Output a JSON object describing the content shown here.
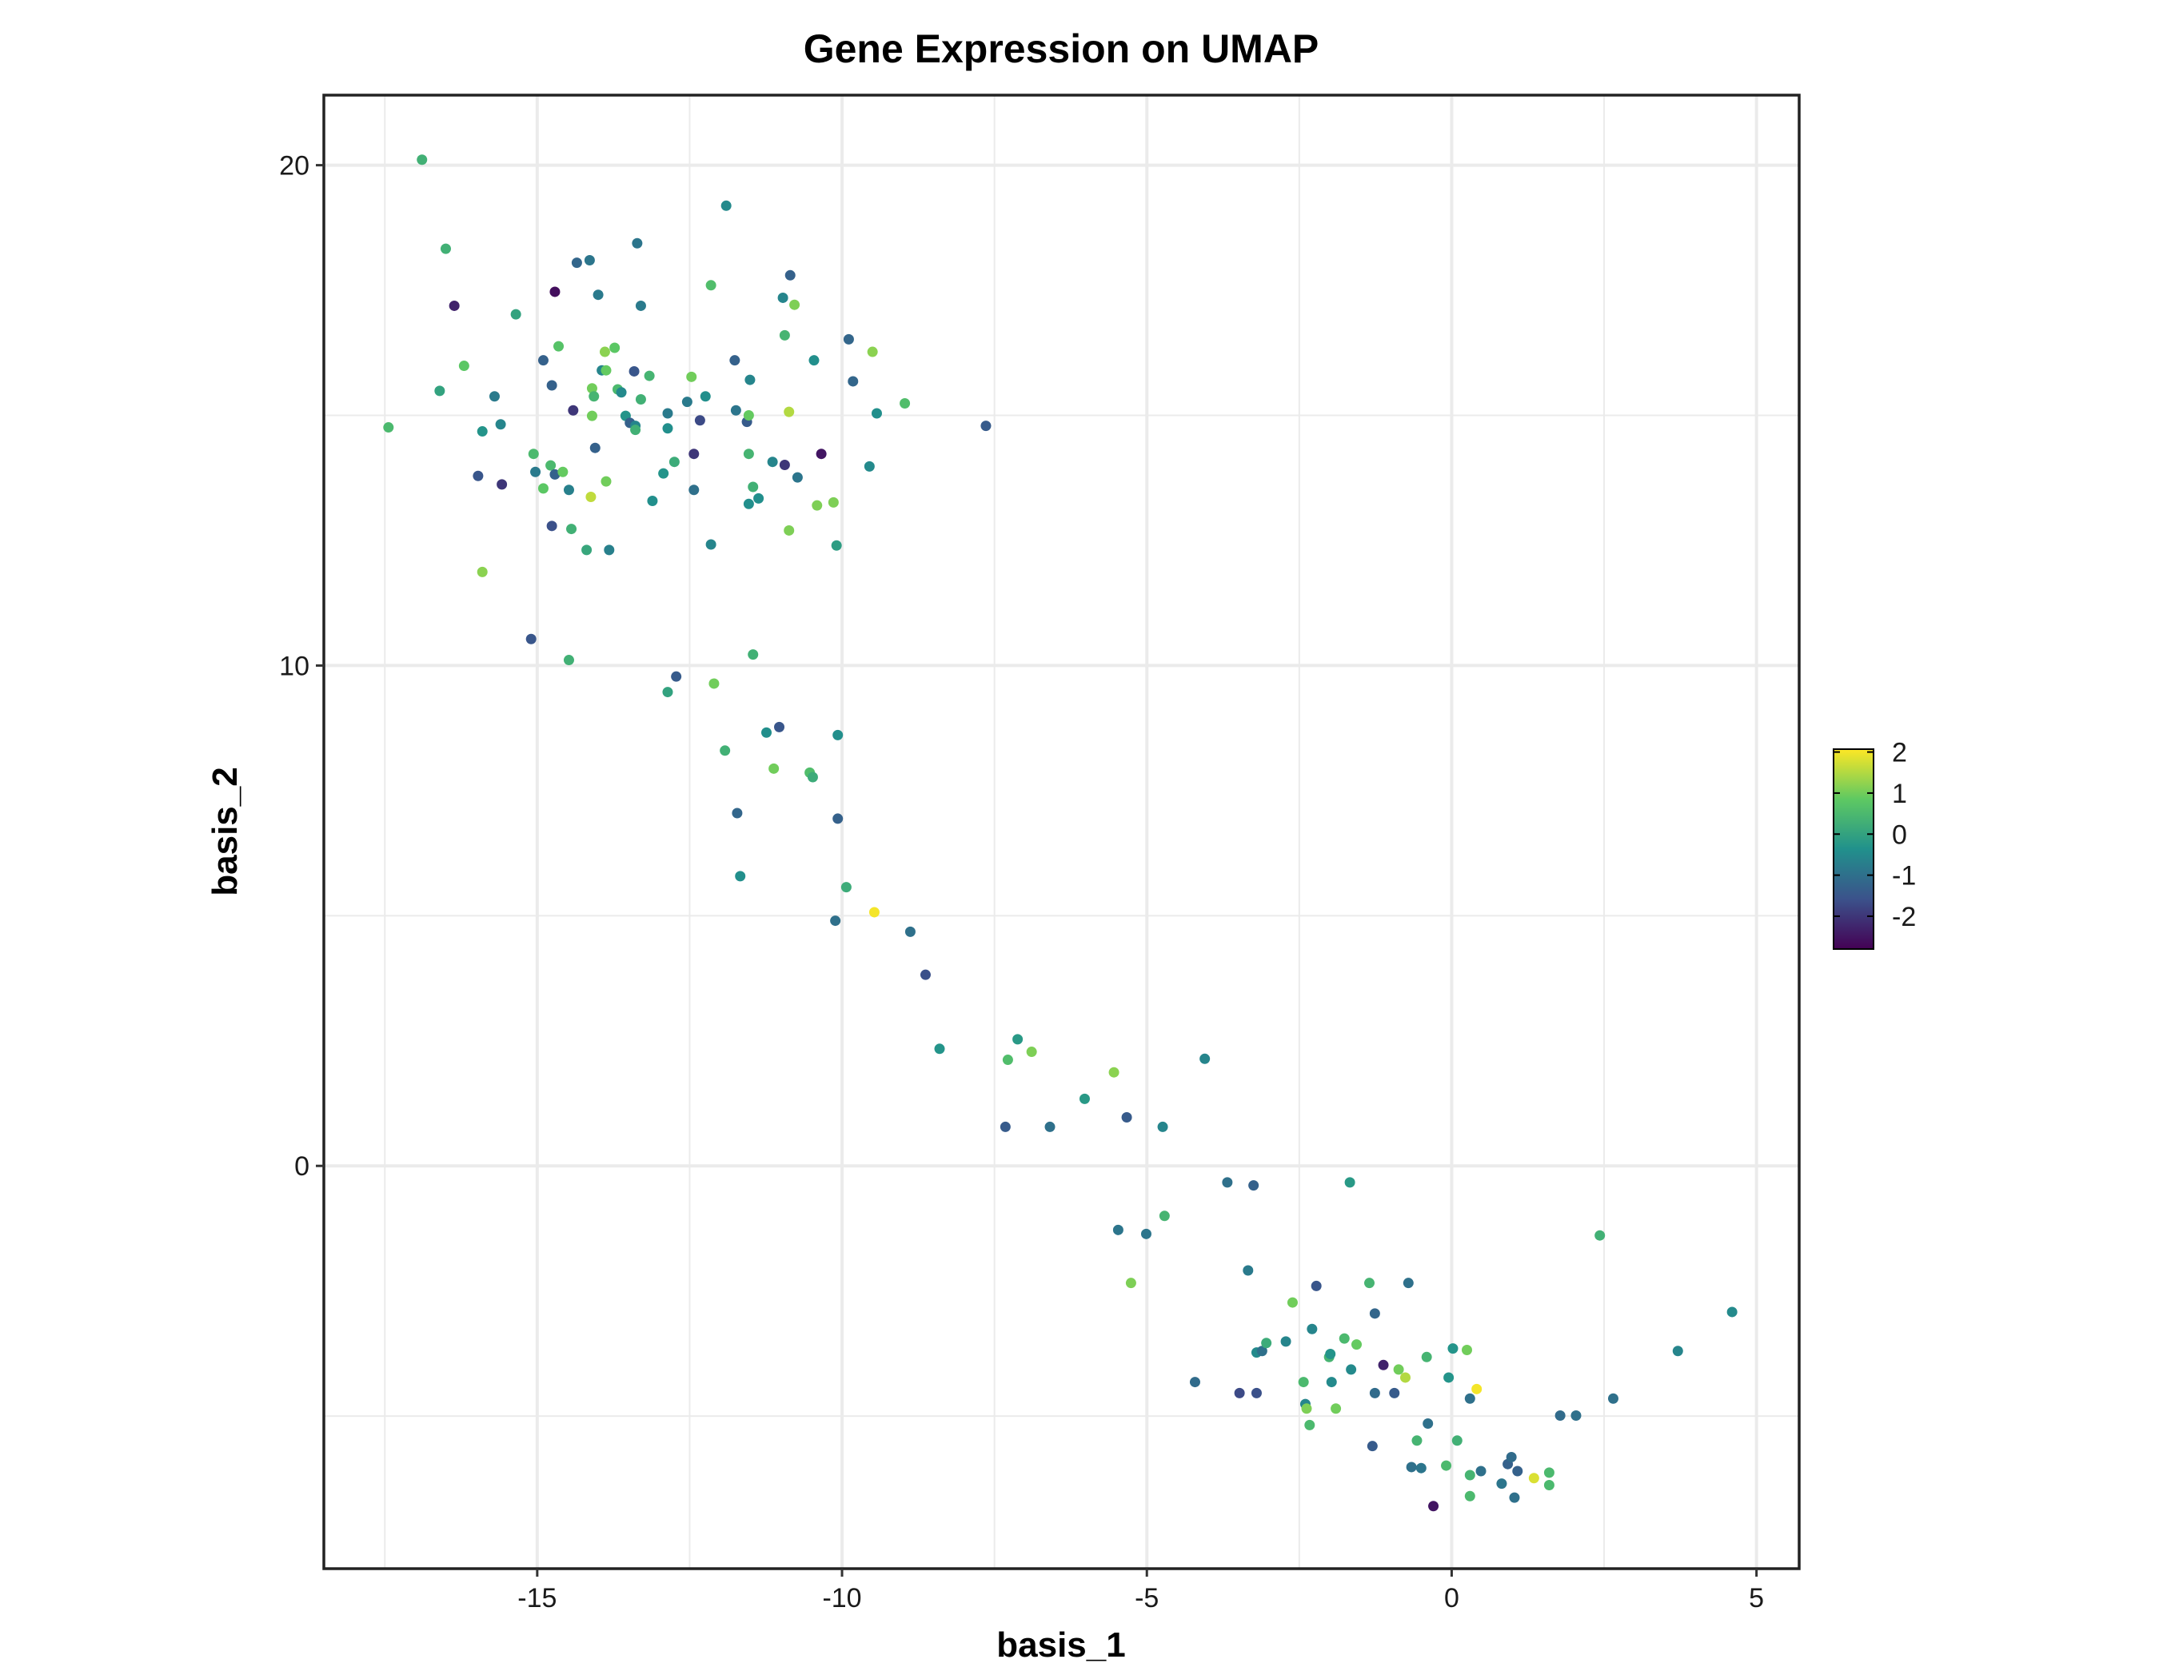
{
  "chart_data": {
    "type": "scatter",
    "title": "Gene Expression on UMAP",
    "xlabel": "basis_1",
    "ylabel": "basis_2",
    "xlim": [
      -18.5,
      5.7
    ],
    "ylim": [
      -8.05,
      21.4
    ],
    "x_ticks": [
      -15,
      -10,
      -5,
      0,
      5
    ],
    "y_ticks": [
      0,
      10,
      20
    ],
    "grid": true,
    "legend": {
      "position": "right",
      "type": "colorbar",
      "colormap": "viridis",
      "range": [
        -2.8,
        2.07
      ],
      "ticks": [
        2,
        1,
        0,
        -1,
        -2
      ]
    },
    "points": {
      "x": [
        -17.44,
        -16.89,
        -16.5,
        -16.36,
        -16.2,
        -16.6,
        -15.35,
        -15.9,
        -15.7,
        -15.6,
        -15.97,
        -15.58,
        -15.9,
        -15.06,
        -15.03,
        -14.9,
        -15.1,
        -14.9,
        -14.76,
        -14.71,
        -14.65,
        -14.78,
        -14.71,
        -14.58,
        -14.76,
        -14.48,
        -14.41,
        -14.44,
        -14.48,
        -14.35,
        -14.14,
        -14.19,
        -14.1,
        -14.07,
        -14.1,
        -14.05,
        -14.12,
        -14.0,
        -13.94,
        -13.89,
        -13.87,
        -13.73,
        -13.87,
        -13.82,
        -13.68,
        -13.62,
        -13.55,
        -13.48,
        -13.39,
        -13.41,
        -13.36,
        -13.39,
        -13.3,
        -13.3,
        -13.16,
        -13.11,
        -12.93,
        -12.86,
        -12.86,
        -12.75,
        -12.86,
        -12.72,
        -12.54,
        -12.47,
        -12.43,
        -12.43,
        -12.33,
        -12.24,
        -12.15,
        -12.15,
        -12.1,
        -11.9,
        -11.92,
        -11.76,
        -11.74,
        -11.72,
        -11.67,
        -11.56,
        -11.53,
        -11.51,
        -11.53,
        -11.46,
        -11.53,
        -11.37,
        -11.46,
        -11.24,
        -11.12,
        -11.14,
        -11.03,
        -10.97,
        -10.94,
        -10.94,
        -10.85,
        -10.87,
        -10.87,
        -10.78,
        -10.73,
        -10.53,
        -10.48,
        -10.46,
        -10.41,
        -10.34,
        -10.14,
        -10.09,
        -10.07,
        -10.07,
        -10.11,
        -9.93,
        -9.89,
        -9.82,
        -9.55,
        -9.5,
        -9.47,
        -9.43,
        -8.97,
        -8.88,
        -8.63,
        -8.4,
        -7.64,
        -7.32,
        -7.28,
        -7.12,
        -6.89,
        -6.59,
        -6.02,
        -5.54,
        -5.47,
        -5.33,
        -5.26,
        -5.01,
        -4.74,
        -4.71,
        -4.21,
        -4.05,
        -3.68,
        -3.48,
        -3.34,
        -3.25,
        -3.2,
        -3.2,
        -3.11,
        -3.04,
        -2.72,
        -2.61,
        -2.43,
        -2.4,
        -2.38,
        -2.33,
        -2.29,
        -2.22,
        -2.01,
        -1.99,
        -1.97,
        -1.9,
        -1.76,
        -1.65,
        -1.56,
        -1.67,
        -1.35,
        -1.3,
        -1.26,
        -1.26,
        -1.12,
        -0.94,
        -0.87,
        -0.76,
        -0.71,
        -0.66,
        -0.57,
        -0.5,
        -0.41,
        -0.39,
        -0.3,
        -0.09,
        -0.05,
        0.02,
        0.09,
        0.25,
        0.3,
        0.3,
        0.3,
        0.41,
        0.48,
        0.82,
        0.92,
        0.98,
        1.08,
        1.03,
        1.35,
        1.6,
        1.6,
        1.78,
        2.04,
        2.43,
        2.65,
        3.71,
        4.6
      ],
      "y": [
        14.76,
        20.11,
        18.33,
        17.19,
        15.99,
        15.49,
        17.02,
        14.68,
        15.38,
        14.82,
        13.79,
        13.62,
        11.87,
        14.23,
        13.87,
        13.54,
        10.53,
        16.1,
        15.6,
        17.47,
        16.38,
        14.0,
        13.82,
        13.87,
        12.79,
        13.51,
        15.1,
        12.73,
        10.11,
        18.05,
        18.1,
        12.31,
        15.54,
        15.38,
        14.99,
        14.35,
        13.37,
        17.41,
        15.9,
        16.27,
        15.9,
        16.35,
        13.68,
        12.31,
        15.52,
        15.46,
        14.99,
        14.85,
        14.79,
        15.88,
        18.44,
        14.71,
        15.32,
        17.19,
        15.79,
        13.29,
        13.84,
        14.74,
        15.04,
        14.07,
        9.47,
        9.78,
        15.27,
        15.77,
        13.51,
        14.23,
        14.9,
        15.38,
        17.6,
        12.42,
        9.64,
        19.19,
        8.3,
        16.1,
        15.1,
        7.05,
        5.79,
        14.87,
        15.0,
        15.71,
        14.23,
        13.57,
        13.23,
        13.34,
        10.22,
        8.66,
        7.94,
        14.07,
        8.77,
        17.35,
        16.6,
        14.01,
        17.8,
        15.07,
        12.7,
        17.21,
        13.76,
        7.86,
        7.77,
        16.1,
        13.2,
        14.23,
        13.26,
        12.4,
        8.61,
        6.94,
        4.9,
        5.57,
        16.52,
        15.68,
        13.98,
        16.27,
        5.07,
        15.04,
        15.24,
        4.68,
        3.82,
        2.34,
        14.79,
        0.78,
        2.12,
        2.53,
        2.28,
        0.78,
        1.34,
        1.87,
        -1.28,
        0.97,
        -2.34,
        -1.36,
        0.78,
        -1.0,
        -4.32,
        2.14,
        -0.33,
        -4.54,
        -2.09,
        -0.39,
        -3.73,
        -4.54,
        -3.7,
        -3.54,
        -3.51,
        -2.73,
        -4.32,
        -4.76,
        -4.85,
        -5.18,
        -3.26,
        -2.4,
        -3.82,
        -3.76,
        -4.32,
        -4.85,
        -3.45,
        -4.07,
        -3.57,
        -0.33,
        -2.34,
        -5.6,
        -2.95,
        -4.54,
        -3.98,
        -4.54,
        -4.07,
        -4.23,
        -2.34,
        -6.02,
        -5.49,
        -6.04,
        -3.82,
        -5.15,
        -6.8,
        -5.99,
        -4.23,
        -3.65,
        -5.49,
        -3.68,
        -4.65,
        -6.18,
        -6.6,
        -4.46,
        -6.1,
        -6.35,
        -5.96,
        -5.82,
        -6.1,
        -6.63,
        -6.24,
        -6.13,
        -6.38,
        -4.99,
        -4.99,
        -1.39,
        -4.65,
        -3.7,
        -2.92
      ],
      "value": [
        0.5,
        0.3,
        0.3,
        -2.3,
        0.8,
        0,
        0,
        -0.3,
        -0.8,
        -0.6,
        -1.5,
        -2,
        1.2,
        0.5,
        -0.8,
        0.8,
        -1.5,
        -1.3,
        -1.3,
        -2.6,
        0.7,
        0.5,
        -1.3,
        0.9,
        -1.6,
        -0.7,
        -2,
        0.3,
        0.3,
        -1.2,
        -0.9,
        0.1,
        1,
        0.4,
        1,
        -1.3,
        1.6,
        -0.8,
        -0.6,
        1.2,
        0.9,
        0.8,
        1,
        -0.7,
        0.5,
        -0.5,
        -0.3,
        -1.3,
        -0.6,
        -1.5,
        -0.9,
        0.3,
        0.3,
        -0.8,
        0.4,
        -0.4,
        -0.3,
        -0.4,
        -0.8,
        0.2,
        0,
        -1.4,
        -0.8,
        1,
        -1,
        -2,
        -1.7,
        -0.4,
        0.6,
        -0.6,
        1,
        -0.5,
        0.3,
        -1.3,
        -0.9,
        -1.2,
        -0.4,
        -1.4,
        0.9,
        -0.6,
        0.4,
        0.3,
        -0.4,
        -0.4,
        0.3,
        -0.4,
        1,
        -0.6,
        -1.5,
        -0.6,
        0.4,
        -2,
        -1.3,
        1.5,
        1.1,
        1.1,
        -0.9,
        0.6,
        0.2,
        -0.4,
        1.1,
        -2.5,
        1.1,
        -0.1,
        -0.4,
        -1.3,
        -1,
        0.2,
        -1.2,
        -1.2,
        -0.5,
        1.2,
        2,
        -0.4,
        0.6,
        -1,
        -1.6,
        -0.3,
        -1.4,
        -1.4,
        0.6,
        -0.2,
        1.1,
        -1,
        -0.2,
        1.2,
        -0.9,
        -1.4,
        1.1,
        -0.9,
        -0.6,
        0.4,
        -1.1,
        -0.6,
        -1,
        -1.7,
        -0.8,
        -1.3,
        -0.5,
        -1.6,
        -1,
        0.2,
        -0.6,
        1,
        0.5,
        -0.6,
        1.1,
        0.5,
        -0.6,
        -1.5,
        0.4,
        -0.3,
        -0.5,
        1,
        0.5,
        -0.5,
        0.9,
        -0.2,
        0.4,
        -1.4,
        -1.2,
        -1.1,
        -2.3,
        -1.4,
        1,
        1.5,
        -1,
        -1,
        0.4,
        -0.9,
        0.4,
        -1,
        -2.5,
        0.5,
        -0.3,
        -0.3,
        0.3,
        1,
        -1,
        0.4,
        0.5,
        2,
        -1,
        -0.9,
        -1.3,
        -1.1,
        -1.3,
        -1,
        1.8,
        0.5,
        0.5,
        -1.1,
        -1,
        0.3,
        -1,
        -0.6,
        -0.5
      ]
    }
  }
}
